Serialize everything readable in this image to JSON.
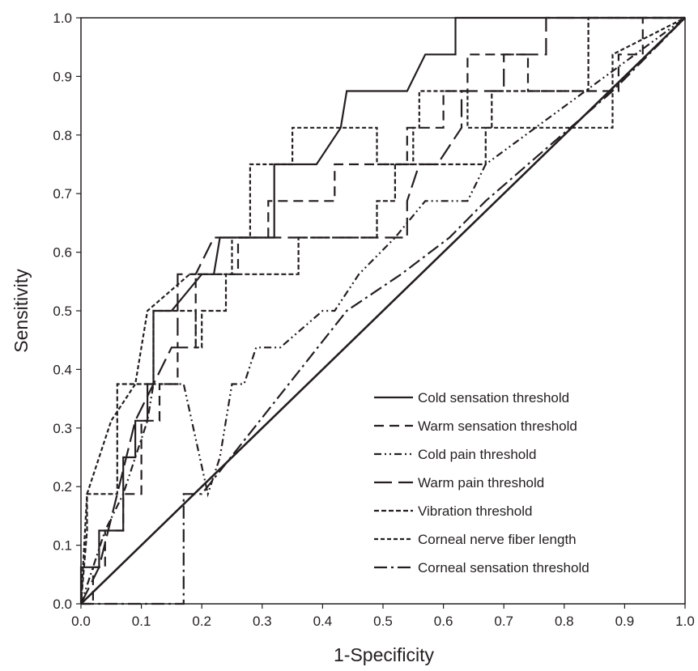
{
  "chart_data": {
    "type": "line",
    "title": "",
    "xlabel": "1-Specificity",
    "ylabel": "Sensitivity",
    "xlim": [
      0,
      1
    ],
    "ylim": [
      0,
      1
    ],
    "xticks": [
      "0.0",
      "0.1",
      "0.2",
      "0.3",
      "0.4",
      "0.5",
      "0.6",
      "0.7",
      "0.8",
      "0.9",
      "1.0"
    ],
    "yticks": [
      "0.0",
      "0.1",
      "0.2",
      "0.3",
      "0.4",
      "0.5",
      "0.6",
      "0.7",
      "0.8",
      "0.9",
      "1.0"
    ],
    "grid": false,
    "legend_position": "bottom-right",
    "reference_line": [
      [
        0,
        0
      ],
      [
        1,
        1
      ]
    ],
    "series": [
      {
        "name": "Cold sensation threshold",
        "line_style": "solid",
        "x": [
          0,
          0,
          0.03,
          0.03,
          0.07,
          0.07,
          0.09,
          0.09,
          0.11,
          0.11,
          0.12,
          0.12,
          0.15,
          0.2,
          0.22,
          0.23,
          0.32,
          0.32,
          0.39,
          0.43,
          0.44,
          0.54,
          0.57,
          0.62,
          0.62,
          1
        ],
        "y": [
          0,
          0.0625,
          0.0625,
          0.125,
          0.125,
          0.25,
          0.25,
          0.3125,
          0.3125,
          0.375,
          0.375,
          0.5,
          0.5,
          0.5625,
          0.5625,
          0.625,
          0.625,
          0.75,
          0.75,
          0.8125,
          0.875,
          0.875,
          0.9375,
          0.9375,
          1,
          1
        ]
      },
      {
        "name": "Warm sensation threshold",
        "line_style": "dashed",
        "x": [
          0,
          0.02,
          0.02,
          0.04,
          0.04,
          0.07,
          0.07,
          0.1,
          0.1,
          0.13,
          0.13,
          0.16,
          0.16,
          0.19,
          0.19,
          0.26,
          0.26,
          0.31,
          0.31,
          0.42,
          0.42,
          0.54,
          0.54,
          0.6,
          0.6,
          0.64,
          0.64,
          0.74,
          0.74,
          0.89,
          0.89,
          0.93,
          0.93,
          1
        ],
        "y": [
          0,
          0,
          0.0625,
          0.0625,
          0.125,
          0.125,
          0.1875,
          0.1875,
          0.3125,
          0.3125,
          0.375,
          0.375,
          0.4375,
          0.4375,
          0.5625,
          0.5625,
          0.625,
          0.625,
          0.6875,
          0.6875,
          0.75,
          0.75,
          0.8125,
          0.8125,
          0.875,
          0.875,
          0.9375,
          0.9375,
          0.875,
          0.875,
          0.9375,
          0.9375,
          1,
          1
        ]
      },
      {
        "name": "Cold pain threshold",
        "line_style": "dash-dot-dot",
        "x": [
          0,
          0.02,
          0.04,
          0.07,
          0.09,
          0.11,
          0.12,
          0.14,
          0.17,
          0.21,
          0.23,
          0.24,
          0.25,
          0.25,
          0.27,
          0.29,
          0.3,
          0.32,
          0.33,
          0.33,
          0.4,
          0.42,
          0.46,
          0.52,
          0.57,
          0.64,
          0.67,
          1
        ],
        "y": [
          0,
          0.0625,
          0.125,
          0.1875,
          0.25,
          0.3125,
          0.375,
          0.375,
          0.375,
          0.1875,
          0.25,
          0.3125,
          0.375,
          0.375,
          0.375,
          0.4375,
          0.4375,
          0.4375,
          0.4375,
          0.4375,
          0.5,
          0.5,
          0.5625,
          0.625,
          0.6875,
          0.6875,
          0.75,
          1
        ]
      },
      {
        "name": "Warm pain threshold",
        "line_style": "long-dash",
        "x": [
          0,
          0.03,
          0.06,
          0.09,
          0.12,
          0.15,
          0.16,
          0.16,
          0.19,
          0.22,
          0.37,
          0.54,
          0.54,
          0.56,
          0.59,
          0.63,
          0.63,
          0.7,
          0.7,
          0.77,
          0.77,
          1
        ],
        "y": [
          0,
          0.0625,
          0.1875,
          0.3125,
          0.375,
          0.4375,
          0.4375,
          0.5625,
          0.5625,
          0.625,
          0.625,
          0.625,
          0.6875,
          0.75,
          0.75,
          0.8125,
          0.875,
          0.875,
          0.9375,
          0.9375,
          1,
          1
        ]
      },
      {
        "name": "Vibration threshold",
        "line_style": "dotted-dash",
        "x": [
          0,
          0.01,
          0.01,
          0.06,
          0.06,
          0.12,
          0.12,
          0.19,
          0.19,
          0.2,
          0.2,
          0.24,
          0.24,
          0.36,
          0.36,
          0.49,
          0.49,
          0.52,
          0.52,
          0.67,
          0.67,
          0.68,
          0.68,
          0.84,
          0.84,
          1
        ],
        "y": [
          0,
          0.125,
          0.1875,
          0.1875,
          0.375,
          0.375,
          0.5,
          0.5,
          0.4375,
          0.4375,
          0.5,
          0.5,
          0.5625,
          0.5625,
          0.625,
          0.625,
          0.6875,
          0.6875,
          0.75,
          0.75,
          0.8125,
          0.8125,
          0.875,
          0.875,
          1,
          1
        ]
      },
      {
        "name": "Corneal nerve fiber length",
        "line_style": "short-dash",
        "x": [
          0,
          0.01,
          0.01,
          0.05,
          0.05,
          0.09,
          0.09,
          0.11,
          0.11,
          0.18,
          0.18,
          0.25,
          0.25,
          0.28,
          0.28,
          0.35,
          0.35,
          0.49,
          0.49,
          0.55,
          0.55,
          0.56,
          0.56,
          0.64,
          0.64,
          0.66,
          0.66,
          0.88,
          0.88,
          1
        ],
        "y": [
          0,
          0.1875,
          0.1875,
          0.3125,
          0.3125,
          0.375,
          0.375,
          0.5,
          0.5,
          0.5625,
          0.5625,
          0.5625,
          0.625,
          0.625,
          0.75,
          0.75,
          0.8125,
          0.8125,
          0.75,
          0.75,
          0.8125,
          0.8125,
          0.875,
          0.875,
          0.8125,
          0.8125,
          0.8125,
          0.8125,
          0.9375,
          1
        ]
      },
      {
        "name": "Corneal sensation threshold",
        "line_style": "dash-dot",
        "x": [
          0,
          0.03,
          0.1,
          0.17,
          0.17,
          0.2,
          0.2,
          0.44,
          0.53,
          0.61,
          0.67,
          0.74,
          0.81,
          0.88,
          1
        ],
        "y": [
          0,
          0,
          0,
          0,
          0.1875,
          0.1875,
          0.1875,
          0.5,
          0.5625,
          0.625,
          0.6875,
          0.75,
          0.8125,
          0.875,
          1
        ]
      }
    ]
  }
}
